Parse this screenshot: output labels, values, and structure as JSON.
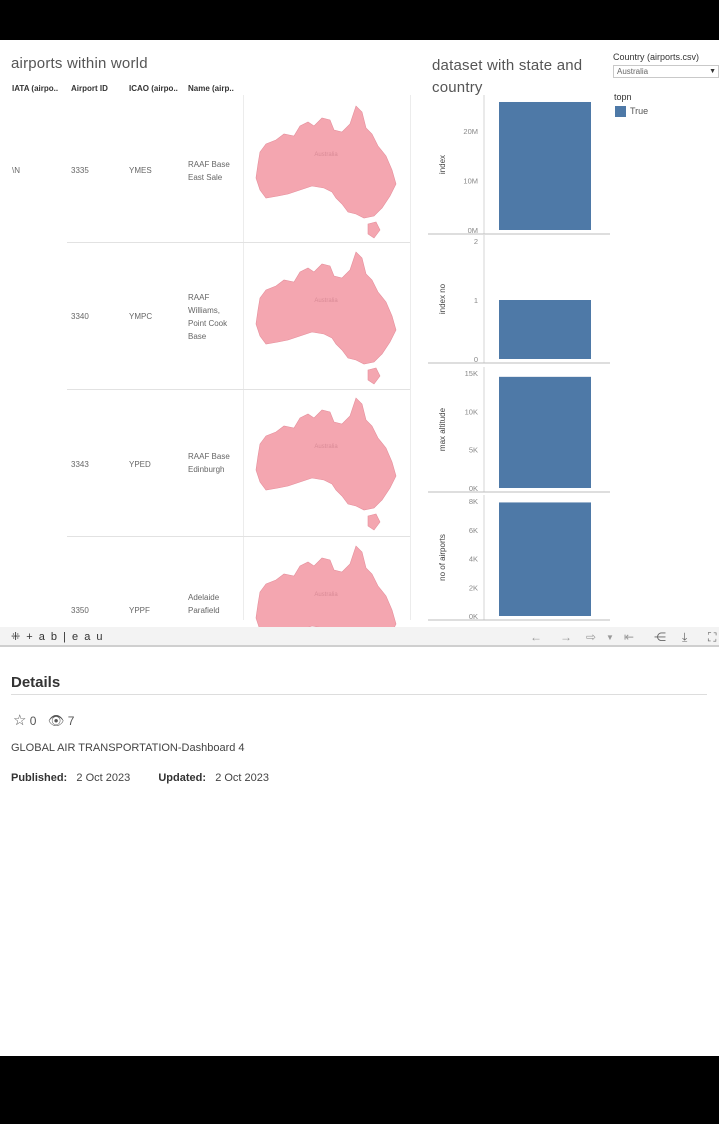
{
  "worksheet_left": {
    "title": "airports within world",
    "columns": [
      "IATA (airpo..",
      "Airport ID",
      "ICAO (airpo..",
      "Name (airp.."
    ],
    "map_label": "Australia",
    "rows": [
      {
        "iata": "\\N",
        "airport_id": "3335",
        "icao": "YMES",
        "name": "RAAF Base East Sale"
      },
      {
        "iata": "",
        "airport_id": "3340",
        "icao": "YMPC",
        "name": "RAAF Williams, Point Cook Base"
      },
      {
        "iata": "",
        "airport_id": "3343",
        "icao": "YPED",
        "name": "RAAF Base Edinburgh"
      },
      {
        "iata": "",
        "airport_id": "3350",
        "icao": "YPPF",
        "name": "Adelaide Parafield"
      }
    ]
  },
  "worksheet_right": {
    "title": "dataset with state and country"
  },
  "filter": {
    "label": "Country (airports.csv)",
    "value": "Australia"
  },
  "legend": {
    "title": "topn",
    "item": "True",
    "color": "#4e79a7"
  },
  "chart_data": [
    {
      "type": "bar",
      "ylabel": "index",
      "ticks": [
        "20M",
        "10M",
        "0M"
      ],
      "values": [
        25800000
      ],
      "ylim": [
        0,
        26000000
      ]
    },
    {
      "type": "bar",
      "ylabel": "index no",
      "ticks": [
        "2",
        "1",
        "0"
      ],
      "values": [
        1
      ],
      "ylim": [
        0,
        2
      ]
    },
    {
      "type": "bar",
      "ylabel": "max altitude",
      "ticks": [
        "15K",
        "10K",
        "5K",
        "0K"
      ],
      "values": [
        14500
      ],
      "ylim": [
        0,
        15000
      ]
    },
    {
      "type": "bar",
      "ylabel": "no of airports",
      "ticks": [
        "8K",
        "6K",
        "4K",
        "2K",
        "0K"
      ],
      "values": [
        7900
      ],
      "ylim": [
        0,
        8000
      ]
    }
  ],
  "toolbar": {
    "logo": "+ a b | e a u"
  },
  "details": {
    "title": "Details",
    "favorites": "0",
    "views": "7",
    "description": "GLOBAL AIR TRANSPORTATION-Dashboard 4",
    "published_label": "Published:",
    "published_value": "2 Oct 2023",
    "updated_label": "Updated:",
    "updated_value": "2 Oct 2023"
  }
}
